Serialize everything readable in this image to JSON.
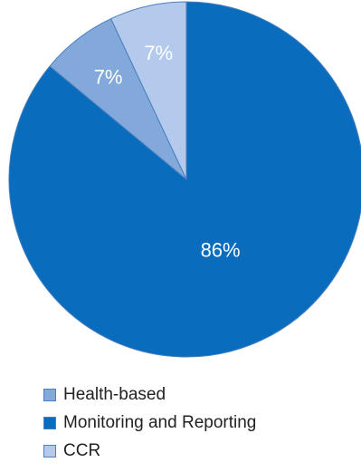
{
  "chart_data": {
    "type": "pie",
    "title": "",
    "slices": [
      {
        "name": "Monitoring and Reporting",
        "value": 86,
        "label": "86%",
        "color": "#0a6cbd"
      },
      {
        "name": "Health-based",
        "value": 7,
        "label": "7%",
        "color": "#82a9d9"
      },
      {
        "name": "CCR",
        "value": 7,
        "label": "7%",
        "color": "#b4caec"
      }
    ],
    "legend": {
      "placement": "bottom",
      "entries": [
        {
          "name": "Health-based",
          "color": "#82a9d9"
        },
        {
          "name": "Monitoring and Reporting",
          "color": "#0a6cbd"
        },
        {
          "name": "CCR",
          "color": "#b4caec"
        }
      ]
    }
  }
}
